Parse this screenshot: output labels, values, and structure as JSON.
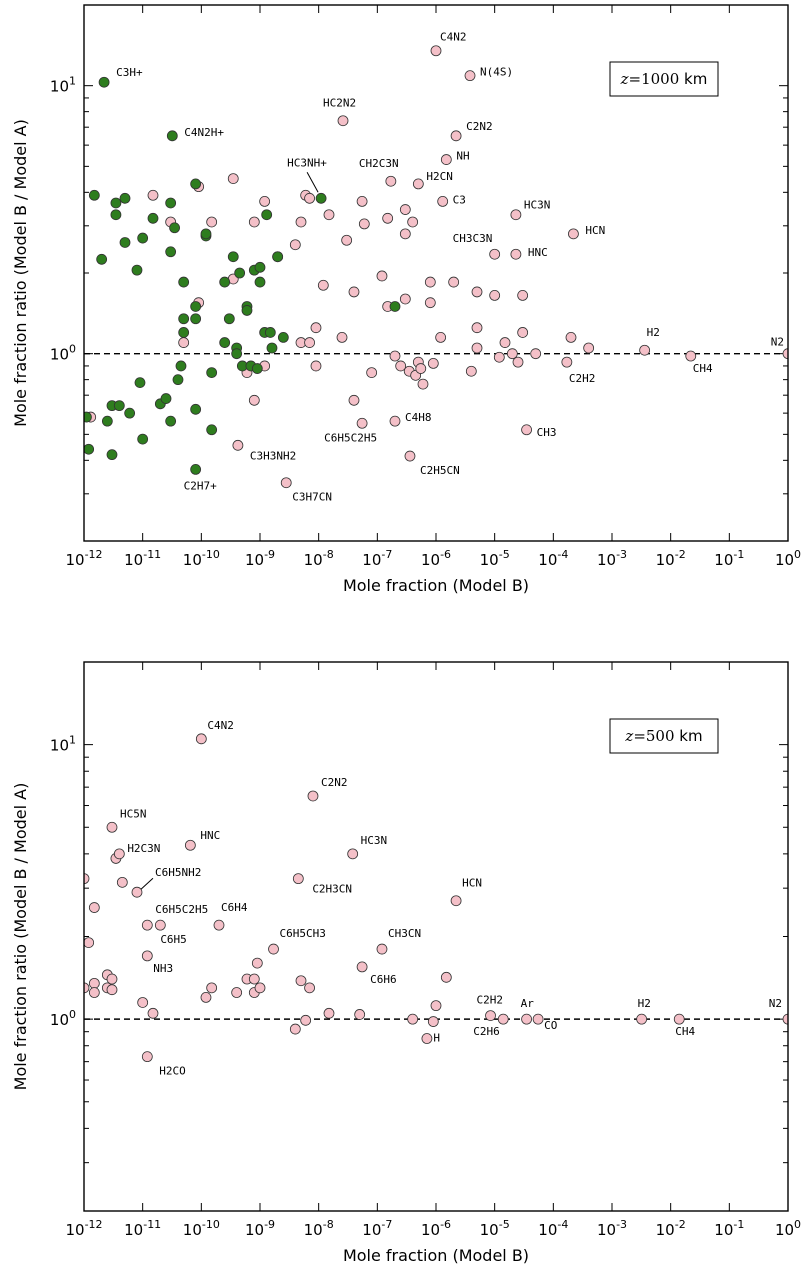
{
  "chart_data": [
    {
      "type": "scatter",
      "title": "",
      "xlabel": "Mole fraction (Model B)",
      "ylabel": "Mole fraction ratio (Model B / Model A)",
      "xscale": "log",
      "yscale": "log",
      "xlim": [
        1e-12,
        1
      ],
      "ylim": [
        0.2,
        20
      ],
      "x_ticks": [
        "10^-12",
        "10^-11",
        "10^-10",
        "10^-9",
        "10^-8",
        "10^-7",
        "10^-6",
        "10^-5",
        "10^-4",
        "10^-3",
        "10^-2",
        "10^-1",
        "10^0"
      ],
      "y_ticks": [
        "10^0",
        "10^1"
      ],
      "reference_line": 1.0,
      "grid": false,
      "annotation": {
        "var": "z",
        "eq": "=",
        "num": "1000",
        "unit": "km",
        "position": "top-right"
      },
      "colors": {
        "pink": "#f4c0c8",
        "green": "#2e7d1e",
        "edge": "#333333"
      },
      "labeled_points": [
        {
          "name": "C4N2",
          "x": 1e-06,
          "y": 13.5,
          "color": "pink"
        },
        {
          "name": "C3H+",
          "x": 2.2e-12,
          "y": 10.3,
          "color": "green"
        },
        {
          "name": "N(4S)",
          "x": 3.8e-06,
          "y": 10.9,
          "color": "pink"
        },
        {
          "name": "HC2N2",
          "x": 2.6e-08,
          "y": 7.4,
          "color": "pink"
        },
        {
          "name": "C4N2H+",
          "x": 3.2e-11,
          "y": 6.5,
          "color": "green"
        },
        {
          "name": "C2N2",
          "x": 2.2e-06,
          "y": 6.5,
          "color": "pink"
        },
        {
          "name": "NH",
          "x": 1.5e-06,
          "y": 5.3,
          "color": "pink"
        },
        {
          "name": "HC3NH+",
          "x": 1.1e-08,
          "y": 3.8,
          "color": "green"
        },
        {
          "name": "CH2C3N",
          "x": 1.7e-07,
          "y": 4.4,
          "color": "pink"
        },
        {
          "name": "H2CN",
          "x": 5e-07,
          "y": 4.3,
          "color": "pink"
        },
        {
          "name": "C3",
          "x": 1.3e-06,
          "y": 3.7,
          "color": "pink"
        },
        {
          "name": "HC3N",
          "x": 2.3e-05,
          "y": 3.3,
          "color": "pink"
        },
        {
          "name": "HCN",
          "x": 0.00022,
          "y": 2.8,
          "color": "pink"
        },
        {
          "name": "CH3C3N",
          "x": 1e-05,
          "y": 2.35,
          "color": "pink"
        },
        {
          "name": "HNC",
          "x": 2.3e-05,
          "y": 2.35,
          "color": "pink"
        },
        {
          "name": "H2",
          "x": 0.0036,
          "y": 1.03,
          "color": "pink"
        },
        {
          "name": "N2",
          "x": 1.0,
          "y": 1.0,
          "color": "pink"
        },
        {
          "name": "CH4",
          "x": 0.022,
          "y": 0.98,
          "color": "pink"
        },
        {
          "name": "C2H2",
          "x": 0.00017,
          "y": 0.93,
          "color": "pink"
        },
        {
          "name": "C6H5C2H5",
          "x": 5.5e-08,
          "y": 0.55,
          "color": "pink"
        },
        {
          "name": "C4H8",
          "x": 2e-07,
          "y": 0.56,
          "color": "pink"
        },
        {
          "name": "CH3",
          "x": 3.5e-05,
          "y": 0.52,
          "color": "pink"
        },
        {
          "name": "C3H3NH2",
          "x": 4.2e-10,
          "y": 0.455,
          "color": "pink"
        },
        {
          "name": "C2H5CN",
          "x": 3.6e-07,
          "y": 0.415,
          "color": "pink"
        },
        {
          "name": "C2H7+",
          "x": 8e-11,
          "y": 0.37,
          "color": "green"
        },
        {
          "name": "C3H7CN",
          "x": 2.8e-09,
          "y": 0.33,
          "color": "pink"
        }
      ],
      "other_points_pink": [
        [
          1.3e-12,
          0.58
        ],
        [
          1.5e-11,
          3.9
        ],
        [
          3e-11,
          3.1
        ],
        [
          5e-11,
          1.1
        ],
        [
          9e-11,
          4.2
        ],
        [
          9e-11,
          1.55
        ],
        [
          1.5e-10,
          3.1
        ],
        [
          3.5e-10,
          4.5
        ],
        [
          3.5e-10,
          1.9
        ],
        [
          6e-10,
          0.85
        ],
        [
          8e-10,
          3.1
        ],
        [
          8e-10,
          0.67
        ],
        [
          1.2e-09,
          3.7
        ],
        [
          1.2e-09,
          0.9
        ],
        [
          2e-09,
          2.3
        ],
        [
          4e-09,
          2.55
        ],
        [
          5e-09,
          3.1
        ],
        [
          5e-09,
          1.1
        ],
        [
          6e-09,
          3.9
        ],
        [
          7e-09,
          3.8
        ],
        [
          7e-09,
          1.1
        ],
        [
          9e-09,
          1.25
        ],
        [
          9e-09,
          0.9
        ],
        [
          1.2e-08,
          1.8
        ],
        [
          1.5e-08,
          3.3
        ],
        [
          2.5e-08,
          1.15
        ],
        [
          3e-08,
          2.65
        ],
        [
          4e-08,
          1.7
        ],
        [
          4e-08,
          0.67
        ],
        [
          5.5e-08,
          3.7
        ],
        [
          6e-08,
          3.05
        ],
        [
          8e-08,
          0.85
        ],
        [
          1.2e-07,
          1.95
        ],
        [
          1.5e-07,
          3.2
        ],
        [
          1.5e-07,
          1.5
        ],
        [
          2e-07,
          0.98
        ],
        [
          2.5e-07,
          0.9
        ],
        [
          3e-07,
          3.45
        ],
        [
          3e-07,
          2.8
        ],
        [
          3e-07,
          1.6
        ],
        [
          3.5e-07,
          0.86
        ],
        [
          4e-07,
          3.1
        ],
        [
          4.5e-07,
          0.83
        ],
        [
          5e-07,
          0.93
        ],
        [
          5.5e-07,
          0.88
        ],
        [
          6e-07,
          0.77
        ],
        [
          8e-07,
          1.85
        ],
        [
          8e-07,
          1.55
        ],
        [
          9e-07,
          0.92
        ],
        [
          1.2e-06,
          1.15
        ],
        [
          2e-06,
          1.85
        ],
        [
          4e-06,
          0.86
        ],
        [
          5e-06,
          1.05
        ],
        [
          5e-06,
          1.25
        ],
        [
          5e-06,
          1.7
        ],
        [
          1e-05,
          1.65
        ],
        [
          1.2e-05,
          0.97
        ],
        [
          1.5e-05,
          1.1
        ],
        [
          2e-05,
          1.0
        ],
        [
          2.5e-05,
          0.93
        ],
        [
          3e-05,
          1.2
        ],
        [
          3e-05,
          1.65
        ],
        [
          5e-05,
          1.0
        ],
        [
          0.0002,
          1.15
        ],
        [
          0.0004,
          1.05
        ]
      ],
      "other_points_green": [
        [
          1.1e-12,
          0.58
        ],
        [
          1.2e-12,
          0.44
        ],
        [
          1.5e-12,
          3.9
        ],
        [
          2e-12,
          2.25
        ],
        [
          2.5e-12,
          0.56
        ],
        [
          3e-12,
          0.64
        ],
        [
          3e-12,
          0.42
        ],
        [
          3.5e-12,
          3.65
        ],
        [
          3.5e-12,
          3.3
        ],
        [
          4e-12,
          0.64
        ],
        [
          5e-12,
          3.8
        ],
        [
          5e-12,
          2.6
        ],
        [
          6e-12,
          0.6
        ],
        [
          8e-12,
          2.05
        ],
        [
          9e-12,
          0.78
        ],
        [
          1e-11,
          2.7
        ],
        [
          1e-11,
          0.48
        ],
        [
          1.5e-11,
          3.2
        ],
        [
          2e-11,
          0.65
        ],
        [
          2.5e-11,
          0.68
        ],
        [
          3e-11,
          3.65
        ],
        [
          3e-11,
          2.4
        ],
        [
          3e-11,
          0.56
        ],
        [
          3.5e-11,
          2.95
        ],
        [
          4e-11,
          0.8
        ],
        [
          4.5e-11,
          0.9
        ],
        [
          5e-11,
          1.2
        ],
        [
          5e-11,
          1.85
        ],
        [
          5e-11,
          1.35
        ],
        [
          8e-11,
          4.3
        ],
        [
          8e-11,
          1.35
        ],
        [
          8e-11,
          1.5
        ],
        [
          8e-11,
          0.62
        ],
        [
          1.2e-10,
          2.75
        ],
        [
          1.2e-10,
          2.8
        ],
        [
          1.5e-10,
          0.85
        ],
        [
          1.5e-10,
          0.52
        ],
        [
          2.5e-10,
          1.1
        ],
        [
          2.5e-10,
          1.85
        ],
        [
          3e-10,
          1.35
        ],
        [
          3.5e-10,
          2.3
        ],
        [
          4e-10,
          1.05
        ],
        [
          4e-10,
          1.0
        ],
        [
          4.5e-10,
          2.0
        ],
        [
          5e-10,
          0.9
        ],
        [
          6e-10,
          1.5
        ],
        [
          6e-10,
          1.45
        ],
        [
          7e-10,
          0.9
        ],
        [
          8e-10,
          2.05
        ],
        [
          9e-10,
          0.88
        ],
        [
          1e-09,
          2.1
        ],
        [
          1e-09,
          1.85
        ],
        [
          1.2e-09,
          1.2
        ],
        [
          1.3e-09,
          3.3
        ],
        [
          1.5e-09,
          1.2
        ],
        [
          1.6e-09,
          1.05
        ],
        [
          2e-09,
          2.3
        ],
        [
          2.5e-09,
          1.15
        ],
        [
          2e-07,
          1.5
        ]
      ]
    },
    {
      "type": "scatter",
      "title": "",
      "xlabel": "Mole fraction (Model B)",
      "ylabel": "Mole fraction ratio (Model B / Model A)",
      "xscale": "log",
      "yscale": "log",
      "xlim": [
        1e-12,
        1
      ],
      "ylim": [
        0.2,
        20
      ],
      "x_ticks": [
        "10^-12",
        "10^-11",
        "10^-10",
        "10^-9",
        "10^-8",
        "10^-7",
        "10^-6",
        "10^-5",
        "10^-4",
        "10^-3",
        "10^-2",
        "10^-1",
        "10^0"
      ],
      "y_ticks": [
        "10^0",
        "10^1"
      ],
      "reference_line": 1.0,
      "grid": false,
      "annotation": {
        "var": "z",
        "eq": "=",
        "num": "500",
        "unit": "km",
        "position": "top-right"
      },
      "colors": {
        "pink": "#f4c0c8",
        "edge": "#333333"
      },
      "labeled_points": [
        {
          "name": "C4N2",
          "x": 1e-10,
          "y": 10.5,
          "color": "pink"
        },
        {
          "name": "C2N2",
          "x": 8e-09,
          "y": 6.5,
          "color": "pink"
        },
        {
          "name": "HC5N",
          "x": 3e-12,
          "y": 5.0,
          "color": "pink"
        },
        {
          "name": "H2C3N",
          "x": 4e-12,
          "y": 4.0,
          "color": "pink"
        },
        {
          "name": "HNC",
          "x": 6.5e-11,
          "y": 4.3,
          "color": "pink"
        },
        {
          "name": "HC3N",
          "x": 3.8e-08,
          "y": 4.0,
          "color": "pink"
        },
        {
          "name": "C6H5NH2",
          "x": 8e-12,
          "y": 2.9,
          "color": "pink"
        },
        {
          "name": "C2H3CN",
          "x": 4.5e-09,
          "y": 3.25,
          "color": "pink"
        },
        {
          "name": "HCN",
          "x": 2.2e-06,
          "y": 2.7,
          "color": "pink"
        },
        {
          "name": "C6H5C2H5",
          "x": 1.2e-11,
          "y": 2.2,
          "color": "pink"
        },
        {
          "name": "C6H4",
          "x": 2e-10,
          "y": 2.2,
          "color": "pink"
        },
        {
          "name": "C6H5",
          "x": 2e-11,
          "y": 2.2,
          "color": "pink"
        },
        {
          "name": "C6H5CH3",
          "x": 1.7e-09,
          "y": 1.8,
          "color": "pink"
        },
        {
          "name": "CH3CN",
          "x": 1.2e-07,
          "y": 1.8,
          "color": "pink"
        },
        {
          "name": "NH3",
          "x": 1.2e-11,
          "y": 1.7,
          "color": "pink"
        },
        {
          "name": "C6H6",
          "x": 5.5e-08,
          "y": 1.55,
          "color": "pink"
        },
        {
          "name": "C2H2",
          "x": 8.5e-06,
          "y": 1.03,
          "color": "pink"
        },
        {
          "name": "Ar",
          "x": 3.5e-05,
          "y": 1.0,
          "color": "pink"
        },
        {
          "name": "C2H6",
          "x": 1.4e-05,
          "y": 1.0,
          "color": "pink"
        },
        {
          "name": "CO",
          "x": 5.5e-05,
          "y": 1.0,
          "color": "pink"
        },
        {
          "name": "H",
          "x": 9e-07,
          "y": 0.98,
          "color": "pink"
        },
        {
          "name": "H2",
          "x": 0.0032,
          "y": 1.0,
          "color": "pink"
        },
        {
          "name": "N2",
          "x": 1.0,
          "y": 1.0,
          "color": "pink"
        },
        {
          "name": "CH4",
          "x": 0.014,
          "y": 1.0,
          "color": "pink"
        },
        {
          "name": "H2CO",
          "x": 1.2e-11,
          "y": 0.73,
          "color": "pink"
        }
      ],
      "other_points_pink": [
        [
          1e-12,
          3.25
        ],
        [
          1.2e-12,
          1.9
        ],
        [
          1e-12,
          1.3
        ],
        [
          1.5e-12,
          2.55
        ],
        [
          1.5e-12,
          1.35
        ],
        [
          1.5e-12,
          1.25
        ],
        [
          2.5e-12,
          1.45
        ],
        [
          2.5e-12,
          1.3
        ],
        [
          3e-12,
          1.4
        ],
        [
          3e-12,
          1.28
        ],
        [
          3.5e-12,
          3.85
        ],
        [
          4.5e-12,
          3.15
        ],
        [
          1e-11,
          1.15
        ],
        [
          1.5e-11,
          1.05
        ],
        [
          1.2e-10,
          1.2
        ],
        [
          1.5e-10,
          1.3
        ],
        [
          4e-10,
          1.25
        ],
        [
          6e-10,
          1.4
        ],
        [
          8e-10,
          1.25
        ],
        [
          8e-10,
          1.4
        ],
        [
          9e-10,
          1.6
        ],
        [
          1e-09,
          1.3
        ],
        [
          4e-09,
          0.92
        ],
        [
          5e-09,
          1.38
        ],
        [
          6e-09,
          0.99
        ],
        [
          7e-09,
          1.3
        ],
        [
          1.5e-08,
          1.05
        ],
        [
          5e-08,
          1.04
        ],
        [
          4e-07,
          1.0
        ],
        [
          7e-07,
          0.85
        ],
        [
          1e-06,
          1.12
        ],
        [
          1.5e-06,
          1.42
        ]
      ]
    }
  ]
}
